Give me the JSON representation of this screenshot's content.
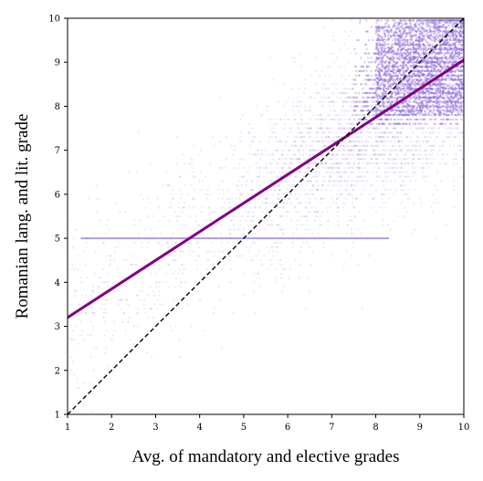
{
  "chart_data": {
    "type": "scatter",
    "title": "",
    "xlabel": "Avg. of mandatory and elective grades",
    "ylabel": "Romanian lang. and lit. grade",
    "xlim": [
      1,
      10
    ],
    "ylim": [
      1,
      10
    ],
    "xticks": [
      "1",
      "2",
      "3",
      "4",
      "5",
      "6",
      "7",
      "8",
      "9",
      "10"
    ],
    "yticks": [
      "1",
      "2",
      "3",
      "4",
      "5",
      "6",
      "7",
      "8",
      "9",
      "10"
    ],
    "grid": false,
    "legend": "none",
    "scatter_color": "#9370db",
    "series": [
      {
        "kind": "scatter",
        "description_of_density": "dense cloud concentrated in upper-right, horizontal band at y=5",
        "x": [
          1.2,
          1.5,
          1.8,
          2.0,
          2.3,
          2.6,
          3.0,
          3.3,
          3.7,
          4.0,
          4.2,
          4.5,
          4.8,
          5.0,
          5.2,
          5.5,
          5.8,
          6.0,
          6.2,
          6.5,
          6.8,
          7.0,
          7.2,
          7.5,
          7.8,
          8.0,
          8.2,
          8.5,
          8.8,
          9.0,
          9.2,
          9.5,
          9.8,
          9.9
        ],
        "y": [
          3.0,
          3.5,
          2.5,
          4.0,
          3.2,
          4.5,
          3.8,
          4.4,
          4.9,
          5.0,
          5.0,
          5.3,
          5.1,
          5.8,
          5.0,
          6.0,
          5.5,
          6.5,
          6.2,
          6.8,
          7.0,
          7.2,
          6.9,
          7.5,
          7.8,
          8.0,
          8.3,
          8.5,
          8.8,
          9.0,
          9.1,
          9.3,
          9.5,
          9.7
        ]
      },
      {
        "kind": "regression-line",
        "color": "#800080",
        "x": [
          1,
          10
        ],
        "y": [
          3.2,
          9.05
        ]
      },
      {
        "kind": "identity-line",
        "color": "#000000",
        "style": "dashed",
        "x": [
          1,
          10
        ],
        "y": [
          1,
          10
        ]
      }
    ]
  }
}
